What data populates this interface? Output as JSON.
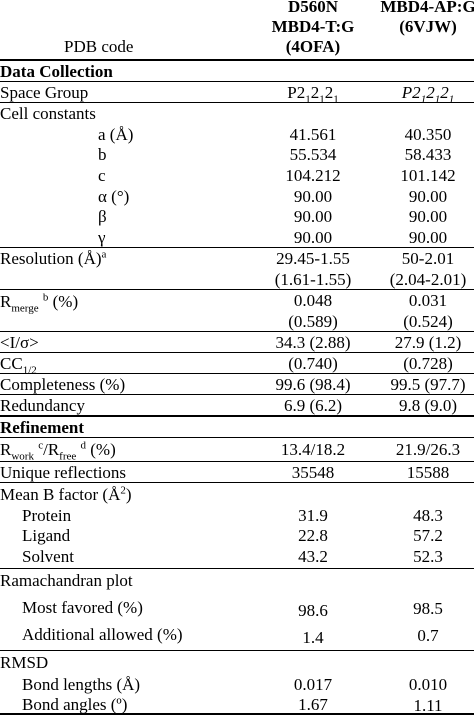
{
  "header": {
    "pdb_label": "PDB code",
    "col1_line1": "D560N",
    "col1_line2": "MBD4-T:G",
    "col1_line3": "(4OFA)",
    "col2_line1": "MBD4-AP:G",
    "col2_line2": "(6VJW)"
  },
  "sections": {
    "data_collection": "Data Collection",
    "refinement": "Refinement"
  },
  "rows": {
    "space_group": {
      "label": "Space Group",
      "v1": "P2₁2₁2₁",
      "v2": "P2₁2₁2₁"
    },
    "cell_constants": {
      "label": "Cell constants"
    },
    "a": {
      "label": "a (Å)",
      "v1": "41.561",
      "v2": "40.350"
    },
    "b": {
      "label": "b",
      "v1": "55.534",
      "v2": "58.433"
    },
    "c": {
      "label": "c",
      "v1": "104.212",
      "v2": "101.142"
    },
    "alpha": {
      "label": "α (°)",
      "v1": "90.00",
      "v2": "90.00"
    },
    "beta": {
      "label": "β",
      "v1": "90.00",
      "v2": "90.00"
    },
    "gamma": {
      "label": "γ",
      "v1": "90.00",
      "v2": "90.00"
    },
    "resolution": {
      "label": "Resolution (Å)",
      "sup": "a",
      "v1": "29.45-1.55",
      "v2": "50-2.01",
      "v1b": "(1.61-1.55)",
      "v2b": "(2.04-2.01)"
    },
    "rmerge": {
      "label_r": "R",
      "label_sub": "merge",
      "label_sup": "b",
      "label_rest": " (%)",
      "v1": "0.048",
      "v2": "0.031",
      "v1b": "(0.589)",
      "v2b": "(0.524)"
    },
    "i_sigma": {
      "label": "<I/σ>",
      "v1": "34.3 (2.88)",
      "v2": "27.9 (1.2)"
    },
    "cc_half": {
      "label_r": "CC",
      "label_sub": "1/2",
      "v1": "(0.740)",
      "v2": "(0.728)"
    },
    "completeness": {
      "label": "Completeness (%)",
      "v1": "99.6 (98.4)",
      "v2": "99.5 (97.7)"
    },
    "redundancy": {
      "label": "Redundancy",
      "v1": "6.9 (6.2)",
      "v2": "9.8 (9.0)"
    },
    "rwork": {
      "r1": "R",
      "sub1": "work",
      "sup1": "c",
      "mid": "/R",
      "sub2": "free",
      "sup2": "d",
      "rest": " (%)",
      "v1": "13.4/18.2",
      "v2": "21.9/26.3"
    },
    "unique": {
      "label": "Unique reflections",
      "v1": "35548",
      "v2": "15588"
    },
    "mean_b": {
      "label": "Mean B factor (Å",
      "sup": "2",
      "close": ")"
    },
    "protein": {
      "label": "Protein",
      "v1": "31.9",
      "v2": "48.3"
    },
    "ligand": {
      "label": "Ligand",
      "v1": "22.8",
      "v2": "57.2"
    },
    "solvent": {
      "label": "Solvent",
      "v1": "43.2",
      "v2": "52.3"
    },
    "rama": {
      "label": "Ramachandran plot"
    },
    "most_favored": {
      "label": "Most favored (%)",
      "v1": "98.6",
      "v2": "98.5"
    },
    "additional": {
      "label": "Additional allowed (%)",
      "v1": "1.4",
      "v2": "0.7"
    },
    "rmsd": {
      "label": "RMSD"
    },
    "bond_lengths": {
      "label": "Bond lengths (Å)",
      "v1": "0.017",
      "v2": "0.010"
    },
    "bond_angles": {
      "label": "Bond angles (º)",
      "v1": "1.67",
      "v2": "1.11"
    }
  }
}
